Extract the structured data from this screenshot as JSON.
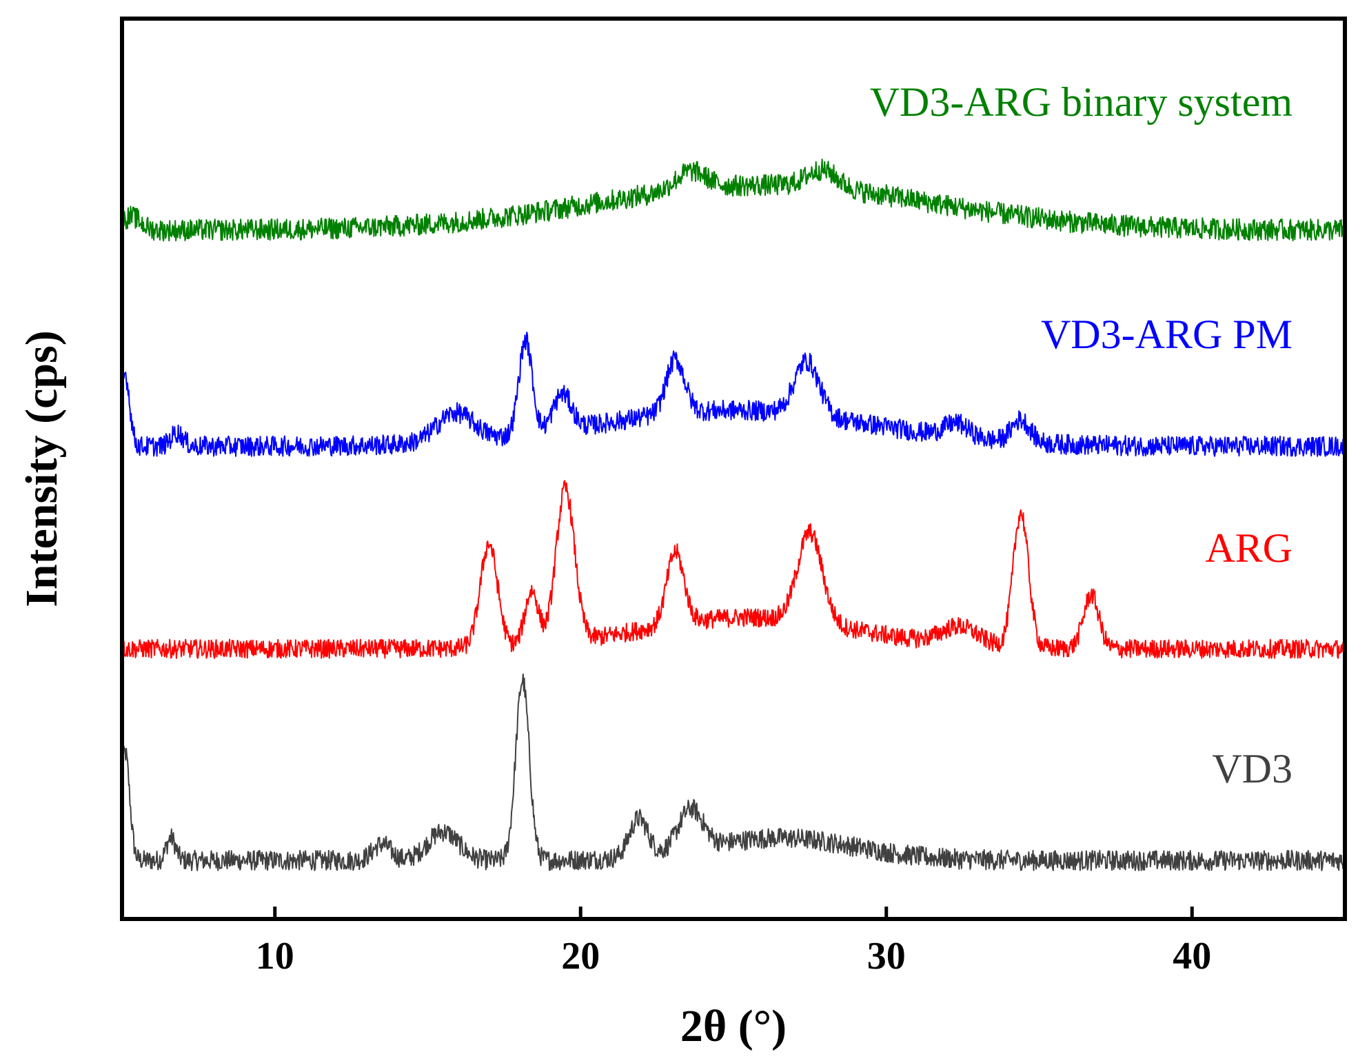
{
  "chart_data": {
    "type": "line",
    "title": "",
    "xlabel": "2θ (°)",
    "ylabel": "Intensity (cps)",
    "xlim": [
      5,
      45
    ],
    "ylim": [
      0,
      100
    ],
    "xticks": [
      10,
      20,
      30,
      40
    ],
    "y_ticks_shown": false,
    "grid": false,
    "legend": "inline labels at right",
    "series": [
      {
        "name": "VD3",
        "color": "#404040",
        "baseline": 6.5,
        "noise": 0.7,
        "peaks": [
          [
            5.1,
            12,
            0.15
          ],
          [
            6.6,
            2.5,
            0.15
          ],
          [
            13.5,
            1.8,
            0.3
          ],
          [
            15.5,
            3.2,
            0.5
          ],
          [
            18.1,
            20,
            0.22
          ],
          [
            21.9,
            4.2,
            0.3
          ],
          [
            23.6,
            4.5,
            0.4
          ],
          [
            26.5,
            2.5,
            2.5
          ]
        ]
      },
      {
        "name": "ARG",
        "color": "#ff0000",
        "baseline": 30,
        "noise": 0.65,
        "peaks": [
          [
            17.0,
            11.5,
            0.28
          ],
          [
            18.4,
            6,
            0.22
          ],
          [
            19.5,
            17,
            0.3
          ],
          [
            23.1,
            8,
            0.28
          ],
          [
            27.5,
            10,
            0.4
          ],
          [
            32.4,
            2,
            0.6
          ],
          [
            34.4,
            15,
            0.25
          ],
          [
            36.7,
            6,
            0.25
          ],
          [
            25.5,
            3.5,
            3.5
          ]
        ]
      },
      {
        "name": "VD3-ARG PM",
        "color": "#0000ff",
        "baseline": 52.5,
        "noise": 0.7,
        "peaks": [
          [
            5.1,
            8,
            0.15
          ],
          [
            6.8,
            1.5,
            0.2
          ],
          [
            15.9,
            3.2,
            0.6
          ],
          [
            18.2,
            10.5,
            0.22
          ],
          [
            19.4,
            4,
            0.3
          ],
          [
            23.1,
            6,
            0.3
          ],
          [
            27.4,
            6,
            0.4
          ],
          [
            32.3,
            1.5,
            0.4
          ],
          [
            34.4,
            2.5,
            0.3
          ],
          [
            25.0,
            4,
            4.5
          ]
        ]
      },
      {
        "name": "VD3-ARG binary system",
        "color": "#008000",
        "baseline": 76.5,
        "noise": 0.75,
        "peaks": [
          [
            5.3,
            1.5,
            0.3
          ],
          [
            26.0,
            5,
            5.5
          ],
          [
            23.6,
            2,
            0.5
          ],
          [
            27.9,
            2,
            0.5
          ]
        ]
      }
    ]
  }
}
